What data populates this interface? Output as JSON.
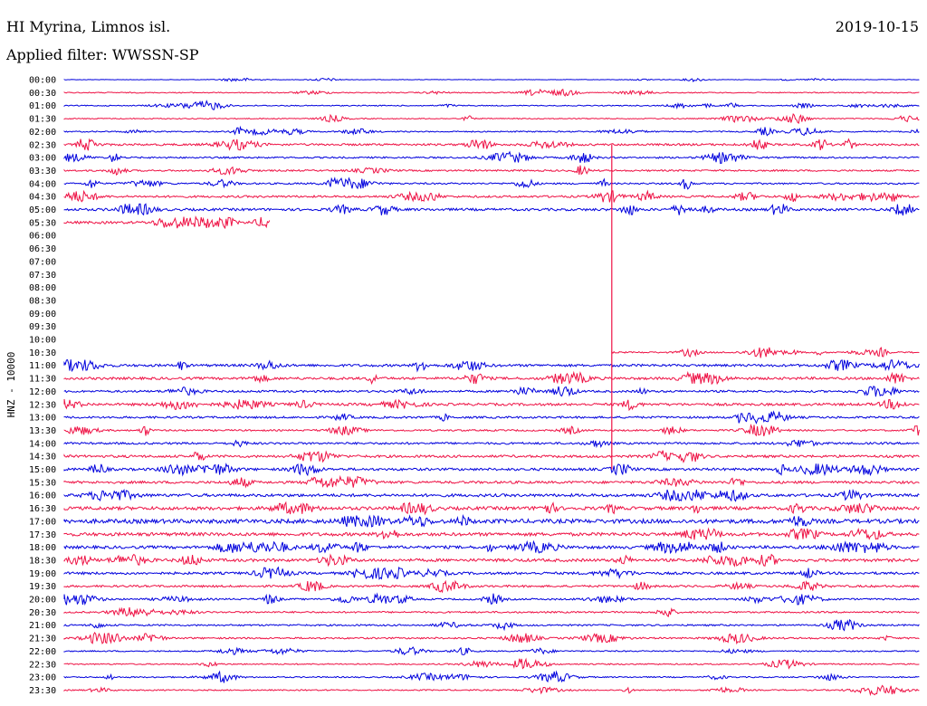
{
  "header": {
    "station": "HI Myrina, Limnos isl.",
    "date": "2019-10-15",
    "filter_text": "Applied filter: WWSSN-SP"
  },
  "chart_data": {
    "type": "line",
    "title": "HI Myrina, Limnos isl.",
    "ylabel": "HNZ - 10000",
    "colors": {
      "even_row": "#0000dd",
      "odd_row": "#ee1144"
    },
    "rows": [
      {
        "label": "00:00",
        "color": "blue",
        "coverage": [
          [
            0,
            1
          ]
        ],
        "amp": 0.5
      },
      {
        "label": "00:30",
        "color": "red",
        "coverage": [
          [
            0,
            1
          ]
        ],
        "amp": 1.2
      },
      {
        "label": "01:00",
        "color": "blue",
        "coverage": [
          [
            0,
            1
          ]
        ],
        "amp": 1.2
      },
      {
        "label": "01:30",
        "color": "red",
        "coverage": [
          [
            0,
            1
          ]
        ],
        "amp": 1.2
      },
      {
        "label": "02:00",
        "color": "blue",
        "coverage": [
          [
            0,
            1
          ]
        ],
        "amp": 1.5
      },
      {
        "label": "02:30",
        "color": "red",
        "coverage": [
          [
            0,
            1
          ]
        ],
        "amp": 2.5
      },
      {
        "label": "03:00",
        "color": "blue",
        "coverage": [
          [
            0,
            1
          ]
        ],
        "amp": 2.0
      },
      {
        "label": "03:30",
        "color": "red",
        "coverage": [
          [
            0,
            1
          ]
        ],
        "amp": 2.0
      },
      {
        "label": "04:00",
        "color": "blue",
        "coverage": [
          [
            0,
            1
          ]
        ],
        "amp": 2.0
      },
      {
        "label": "04:30",
        "color": "red",
        "coverage": [
          [
            0,
            1
          ]
        ],
        "amp": 2.5
      },
      {
        "label": "05:00",
        "color": "blue",
        "coverage": [
          [
            0,
            1
          ]
        ],
        "amp": 3.0
      },
      {
        "label": "05:30",
        "color": "red",
        "coverage": [
          [
            0,
            0.24
          ]
        ],
        "amp": 3.0
      },
      {
        "label": "06:00",
        "color": "blue",
        "coverage": [],
        "amp": 0
      },
      {
        "label": "06:30",
        "color": "red",
        "coverage": [],
        "amp": 0
      },
      {
        "label": "07:00",
        "color": "blue",
        "coverage": [],
        "amp": 0
      },
      {
        "label": "07:30",
        "color": "red",
        "coverage": [],
        "amp": 0
      },
      {
        "label": "08:00",
        "color": "blue",
        "coverage": [],
        "amp": 0
      },
      {
        "label": "08:30",
        "color": "red",
        "coverage": [],
        "amp": 0
      },
      {
        "label": "09:00",
        "color": "blue",
        "coverage": [],
        "amp": 0
      },
      {
        "label": "09:30",
        "color": "red",
        "coverage": [],
        "amp": 0
      },
      {
        "label": "10:00",
        "color": "blue",
        "coverage": [],
        "amp": 0
      },
      {
        "label": "10:30",
        "color": "red",
        "coverage": [
          [
            0.64,
            1
          ]
        ],
        "amp": 1.8
      },
      {
        "label": "11:00",
        "color": "blue",
        "coverage": [
          [
            0,
            1
          ]
        ],
        "amp": 3.0
      },
      {
        "label": "11:30",
        "color": "red",
        "coverage": [
          [
            0,
            1
          ]
        ],
        "amp": 3.0
      },
      {
        "label": "12:00",
        "color": "blue",
        "coverage": [
          [
            0,
            1
          ]
        ],
        "amp": 2.5
      },
      {
        "label": "12:30",
        "color": "red",
        "coverage": [
          [
            0,
            1
          ]
        ],
        "amp": 3.0
      },
      {
        "label": "13:00",
        "color": "blue",
        "coverage": [
          [
            0,
            1
          ]
        ],
        "amp": 2.5
      },
      {
        "label": "13:30",
        "color": "red",
        "coverage": [
          [
            0,
            1
          ]
        ],
        "amp": 2.0
      },
      {
        "label": "14:00",
        "color": "blue",
        "coverage": [
          [
            0,
            1
          ]
        ],
        "amp": 2.5
      },
      {
        "label": "14:30",
        "color": "red",
        "coverage": [
          [
            0,
            1
          ]
        ],
        "amp": 3.0
      },
      {
        "label": "15:00",
        "color": "blue",
        "coverage": [
          [
            0,
            1
          ]
        ],
        "amp": 3.0
      },
      {
        "label": "15:30",
        "color": "red",
        "coverage": [
          [
            0,
            1
          ]
        ],
        "amp": 3.0
      },
      {
        "label": "16:00",
        "color": "blue",
        "coverage": [
          [
            0,
            1
          ]
        ],
        "amp": 3.5
      },
      {
        "label": "16:30",
        "color": "red",
        "coverage": [
          [
            0,
            1
          ]
        ],
        "amp": 4.0
      },
      {
        "label": "17:00",
        "color": "blue",
        "coverage": [
          [
            0,
            1
          ]
        ],
        "amp": 5.0
      },
      {
        "label": "17:30",
        "color": "red",
        "coverage": [
          [
            0,
            1
          ]
        ],
        "amp": 4.0
      },
      {
        "label": "18:00",
        "color": "blue",
        "coverage": [
          [
            0,
            1
          ]
        ],
        "amp": 3.5
      },
      {
        "label": "18:30",
        "color": "red",
        "coverage": [
          [
            0,
            1
          ]
        ],
        "amp": 3.5
      },
      {
        "label": "19:00",
        "color": "blue",
        "coverage": [
          [
            0,
            1
          ]
        ],
        "amp": 3.0
      },
      {
        "label": "19:30",
        "color": "red",
        "coverage": [
          [
            0,
            1
          ]
        ],
        "amp": 2.5
      },
      {
        "label": "20:00",
        "color": "blue",
        "coverage": [
          [
            0,
            1
          ]
        ],
        "amp": 2.0
      },
      {
        "label": "20:30",
        "color": "red",
        "coverage": [
          [
            0,
            1
          ]
        ],
        "amp": 2.0
      },
      {
        "label": "21:00",
        "color": "blue",
        "coverage": [
          [
            0,
            1
          ]
        ],
        "amp": 2.0
      },
      {
        "label": "21:30",
        "color": "red",
        "coverage": [
          [
            0,
            1
          ]
        ],
        "amp": 2.0
      },
      {
        "label": "22:00",
        "color": "blue",
        "coverage": [
          [
            0,
            1
          ]
        ],
        "amp": 1.5
      },
      {
        "label": "22:30",
        "color": "red",
        "coverage": [
          [
            0,
            1
          ]
        ],
        "amp": 1.5
      },
      {
        "label": "23:00",
        "color": "blue",
        "coverage": [
          [
            0,
            1
          ]
        ],
        "amp": 1.5
      },
      {
        "label": "23:30",
        "color": "red",
        "coverage": [
          [
            0,
            1
          ]
        ],
        "amp": 1.5
      }
    ],
    "marker": {
      "color": "red",
      "x_fraction": 0.64,
      "from_row": "02:30",
      "to_row": "15:00"
    }
  }
}
